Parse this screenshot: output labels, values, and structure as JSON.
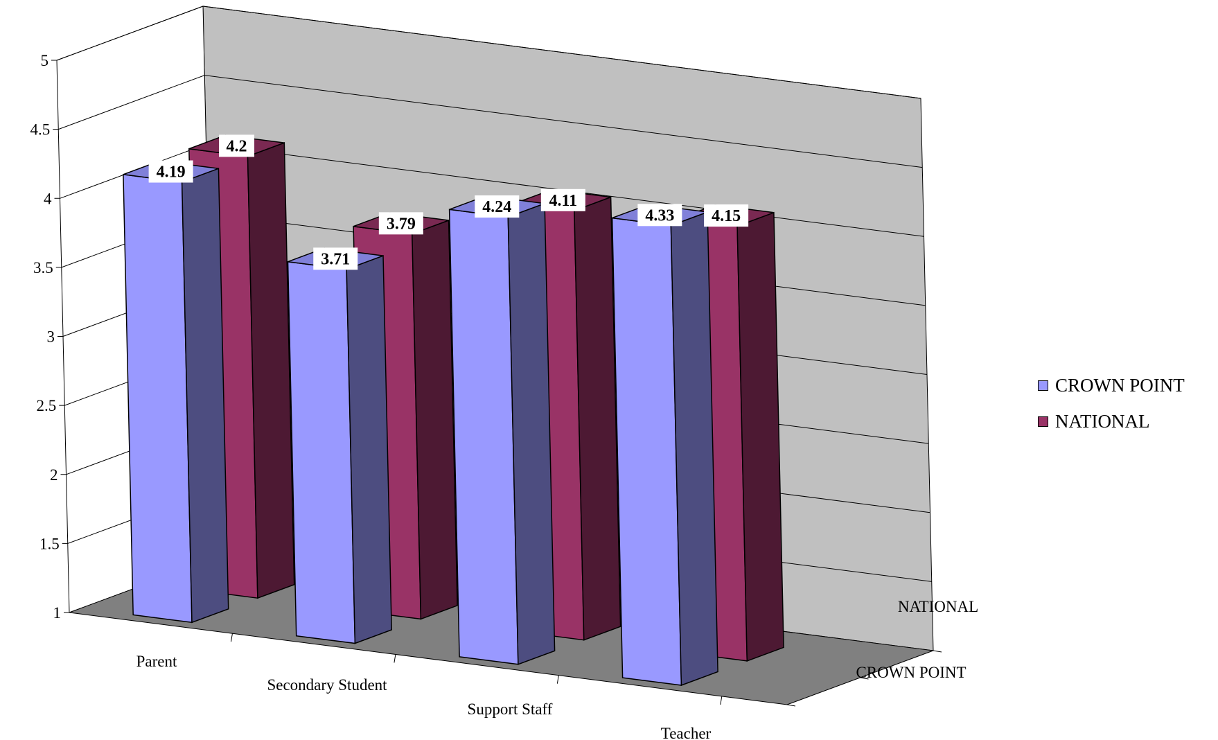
{
  "chart_data": {
    "type": "bar",
    "categories": [
      "Parent",
      "Secondary Student",
      "Support Staff",
      "Teacher"
    ],
    "series": [
      {
        "name": "CROWN POINT",
        "values": [
          4.19,
          3.71,
          4.24,
          4.33
        ],
        "color": "#9999ff"
      },
      {
        "name": "NATIONAL",
        "values": [
          4.2,
          3.79,
          4.11,
          4.15
        ],
        "color": "#993366"
      }
    ],
    "depth_labels": [
      "CROWN POINT",
      "NATIONAL"
    ],
    "y_ticks": [
      "1",
      "1.5",
      "2",
      "2.5",
      "3",
      "3.5",
      "4",
      "4.5",
      "5"
    ],
    "ylim": [
      1,
      5
    ],
    "title": "",
    "xlabel": "",
    "ylabel": "",
    "grid": true,
    "legend_position": "right",
    "colors": {
      "back_wall": "#c0c0c0",
      "floor": "#808080",
      "crown_side": "#4d4d80",
      "crown_top": "#8080d9",
      "national_side": "#4d1933",
      "national_top": "#7a2952"
    }
  }
}
